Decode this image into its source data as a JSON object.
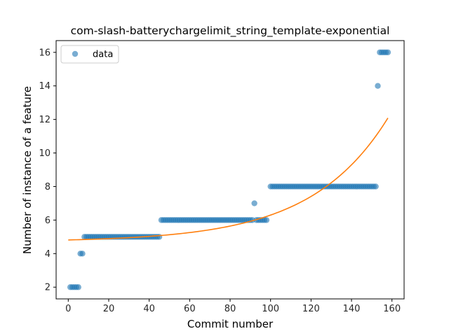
{
  "chart_data": {
    "type": "scatter",
    "title": "com-slash-batterychargelimit_string_template-exponential",
    "xlabel": "Commit number",
    "ylabel": "Number of instance of a feature",
    "xlim": [
      -6,
      166
    ],
    "ylim": [
      1.3,
      16.7
    ],
    "xticks": [
      0,
      20,
      40,
      60,
      80,
      100,
      120,
      140,
      160
    ],
    "yticks": [
      2,
      4,
      6,
      8,
      10,
      12,
      14,
      16
    ],
    "grid": false,
    "legend": {
      "position": "top-left",
      "entries": [
        "data"
      ]
    },
    "colors": {
      "data": "#1f77b4",
      "fit": "#ff7f0e"
    },
    "series": [
      {
        "name": "data",
        "kind": "scatter",
        "segments": [
          {
            "x_start": 1,
            "x_end": 5,
            "y": 2
          },
          {
            "x_start": 6,
            "x_end": 7,
            "y": 4
          },
          {
            "x_start": 8,
            "x_end": 45,
            "y": 5
          },
          {
            "x_start": 46,
            "x_end": 91,
            "y": 6
          },
          {
            "x_start": 93,
            "x_end": 98,
            "y": 6
          },
          {
            "x_start": 100,
            "x_end": 152,
            "y": 8
          },
          {
            "x_start": 154,
            "x_end": 158,
            "y": 16
          }
        ],
        "points": [
          {
            "x": 92,
            "y": 7
          },
          {
            "x": 153,
            "y": 14
          }
        ]
      },
      {
        "kind": "line",
        "model": "exponential",
        "x_range": [
          0,
          158
        ],
        "params": {
          "a": 0.114,
          "b": 0.0264,
          "c": 4.7
        }
      }
    ]
  }
}
